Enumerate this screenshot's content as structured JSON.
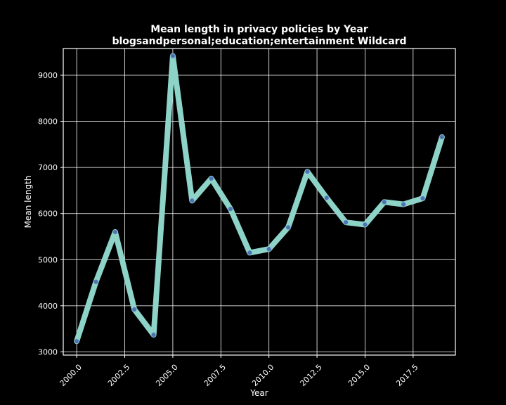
{
  "chart_data": {
    "type": "line",
    "title": "Mean length in privacy policies by Year",
    "subtitle": "blogsandpersonal;education;entertainment Wildcard",
    "xlabel": "Year",
    "ylabel": "Mean length",
    "xlim": [
      1999.3,
      2019.7
    ],
    "ylim": [
      2930,
      9580
    ],
    "x_ticks": [
      2000.0,
      2002.5,
      2005.0,
      2007.5,
      2010.0,
      2012.5,
      2015.0,
      2017.5
    ],
    "x_tick_labels": [
      "2000.0",
      "2002.5",
      "2005.0",
      "2007.5",
      "2010.0",
      "2012.5",
      "2015.0",
      "2017.5"
    ],
    "y_ticks": [
      3000,
      4000,
      5000,
      6000,
      7000,
      8000,
      9000
    ],
    "y_tick_labels": [
      "3000",
      "4000",
      "5000",
      "6000",
      "7000",
      "8000",
      "9000"
    ],
    "grid": true,
    "series": [
      {
        "x": [
          2000,
          2001,
          2002,
          2003,
          2004,
          2005,
          2006,
          2007,
          2008,
          2009,
          2010,
          2011,
          2012,
          2013,
          2014,
          2015,
          2016,
          2017,
          2018,
          2019
        ],
        "values": [
          3230,
          4520,
          5600,
          3920,
          3370,
          9420,
          6280,
          6760,
          6100,
          5150,
          5230,
          5700,
          6910,
          6340,
          5810,
          5760,
          6250,
          6200,
          6330,
          7660
        ],
        "line_color": "#8dd3c7",
        "marker_color": "#4c72b0"
      }
    ],
    "colors": {
      "background": "#000000",
      "foreground": "#ffffff",
      "grid": "#ffffff"
    }
  }
}
